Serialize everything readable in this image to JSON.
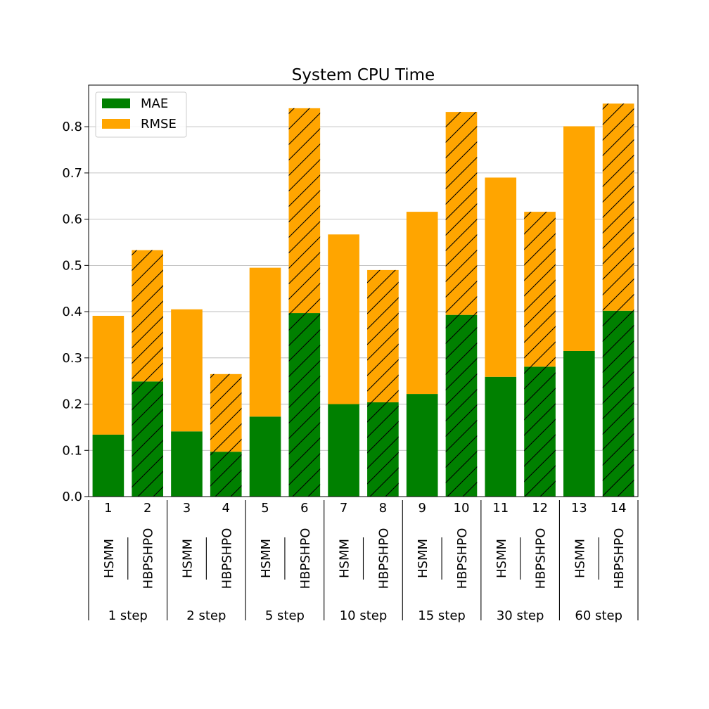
{
  "chart_data": {
    "type": "bar",
    "stacked": true,
    "title": "System CPU Time",
    "categories": [
      "1",
      "2",
      "3",
      "4",
      "5",
      "6",
      "7",
      "8",
      "9",
      "10",
      "11",
      "12",
      "13",
      "14"
    ],
    "methods": [
      "HSMM",
      "HBPSHPO",
      "HSMM",
      "HBPSHPO",
      "HSMM",
      "HBPSHPO",
      "HSMM",
      "HBPSHPO",
      "HSMM",
      "HBPSHPO",
      "HSMM",
      "HBPSHPO",
      "HSMM",
      "HBPSHPO"
    ],
    "groups": [
      "1 step",
      "2 step",
      "5 step",
      "10 step",
      "15 step",
      "30 step",
      "60 step"
    ],
    "hatched": [
      false,
      true,
      false,
      true,
      false,
      true,
      false,
      true,
      false,
      true,
      false,
      true,
      false,
      true
    ],
    "series": [
      {
        "name": "MAE",
        "color": "#008000",
        "values": [
          0.134,
          0.249,
          0.141,
          0.097,
          0.173,
          0.397,
          0.2,
          0.204,
          0.222,
          0.393,
          0.259,
          0.281,
          0.315,
          0.402
        ]
      },
      {
        "name": "RMSE",
        "color": "#FFA500",
        "values": [
          0.257,
          0.284,
          0.264,
          0.168,
          0.322,
          0.443,
          0.367,
          0.286,
          0.394,
          0.439,
          0.431,
          0.335,
          0.486,
          0.448
        ]
      }
    ],
    "ylim": [
      0,
      0.89
    ],
    "yticks": [
      "0.0",
      "0.1",
      "0.2",
      "0.3",
      "0.4",
      "0.5",
      "0.6",
      "0.7",
      "0.8"
    ],
    "grid": "y",
    "legend": "top-left"
  }
}
